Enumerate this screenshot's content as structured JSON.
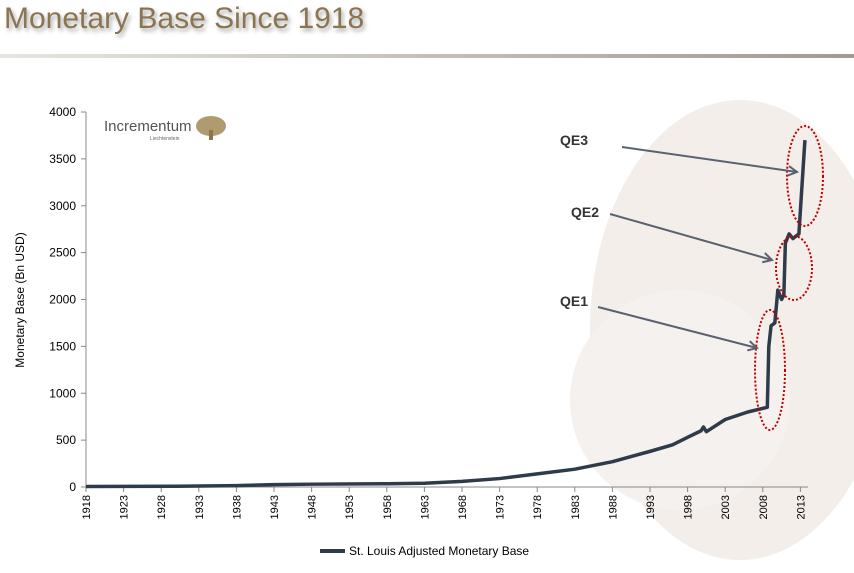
{
  "header": {
    "title": "Monetary Base Since 1918"
  },
  "logo": {
    "name": "Incrementum",
    "sub": "Liechtenstein"
  },
  "chart_data": {
    "type": "line",
    "title": "",
    "xlabel": "",
    "ylabel": "Monetary Base (Bn USD)",
    "xlim": [
      1918,
      2014
    ],
    "ylim": [
      0,
      4000
    ],
    "yticks": [
      0,
      500,
      1000,
      1500,
      2000,
      2500,
      3000,
      3500,
      4000
    ],
    "xticks": [
      1918,
      1923,
      1928,
      1933,
      1938,
      1943,
      1948,
      1953,
      1958,
      1963,
      1968,
      1973,
      1978,
      1983,
      1988,
      1993,
      1998,
      2003,
      2008,
      2013
    ],
    "legend_position": "bottom",
    "series": [
      {
        "name": "St. Louis Adjusted Monetary Base",
        "color": "#2f3a4a",
        "x": [
          1918,
          1930,
          1938,
          1943,
          1948,
          1958,
          1963,
          1968,
          1973,
          1978,
          1983,
          1988,
          1993,
          1996,
          1998,
          1999.8,
          2000.1,
          2000.5,
          2003,
          2006,
          2008.6,
          2008.8,
          2009.1,
          2009.6,
          2010,
          2010.5,
          2010.8,
          2011,
          2011.5,
          2012,
          2012.8,
          2013.6
        ],
        "y": [
          6,
          8,
          15,
          25,
          30,
          35,
          40,
          60,
          90,
          140,
          190,
          270,
          380,
          450,
          530,
          600,
          640,
          590,
          720,
          800,
          850,
          1500,
          1720,
          1750,
          2100,
          2000,
          2050,
          2600,
          2700,
          2650,
          2700,
          3700
        ]
      }
    ],
    "annotations": [
      {
        "label": "QE1"
      },
      {
        "label": "QE2"
      },
      {
        "label": "QE3"
      }
    ],
    "annotation_color": "#c00000"
  }
}
